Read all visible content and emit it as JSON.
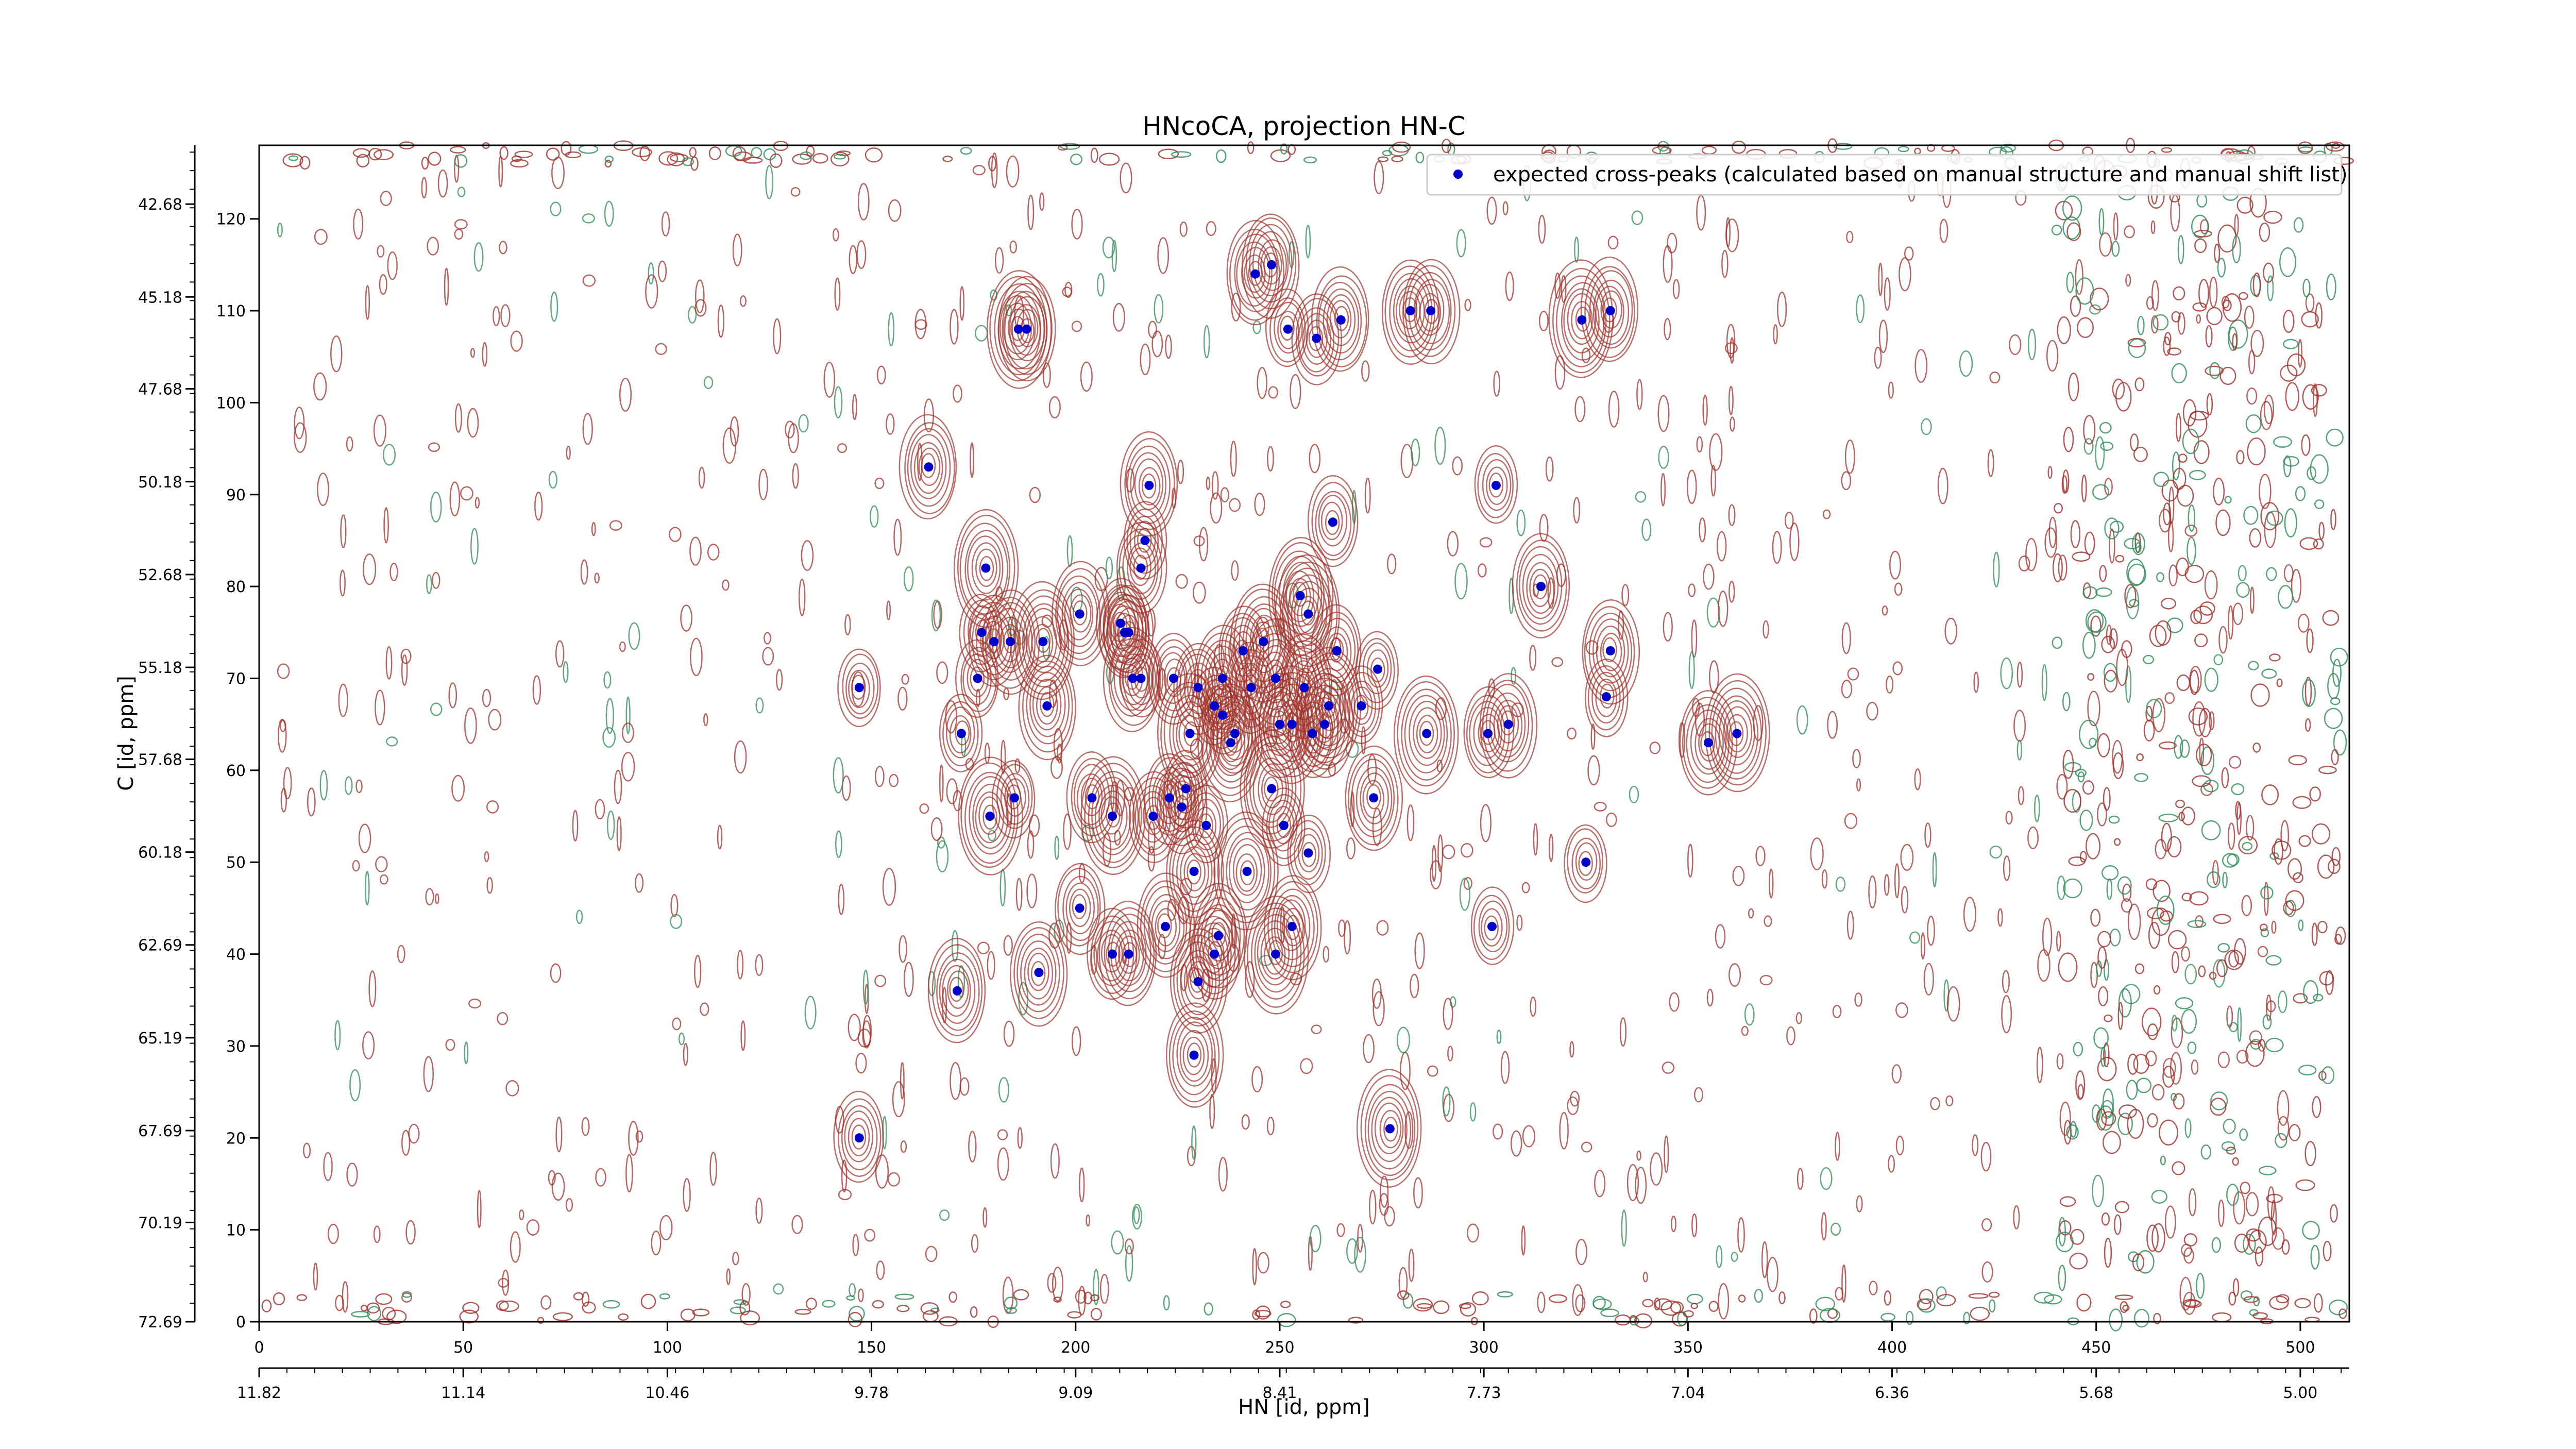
{
  "chart_data": {
    "type": "scatter",
    "title": "HNcoCA, projection HN-C",
    "xlabel": "HN [id, ppm]",
    "ylabel": "C [id, ppm]",
    "xlim": [
      0,
      512
    ],
    "ylim": [
      0,
      128
    ],
    "grid": false,
    "legend_position": "top-right",
    "colors": {
      "peaks": "#0000cc",
      "contour_positive": "#a0302a",
      "contour_negative": "#2e8b57"
    },
    "x_ticks": [
      "0",
      "50",
      "100",
      "150",
      "200",
      "250",
      "300",
      "350",
      "400",
      "450",
      "500"
    ],
    "x_tick_values": [
      0,
      50,
      100,
      150,
      200,
      250,
      300,
      350,
      400,
      450,
      500
    ],
    "y_ticks": [
      "0",
      "10",
      "20",
      "30",
      "40",
      "50",
      "60",
      "70",
      "80",
      "90",
      "100",
      "110",
      "120"
    ],
    "y_tick_values": [
      0,
      10,
      20,
      30,
      40,
      50,
      60,
      70,
      80,
      90,
      100,
      110,
      120
    ],
    "secondary_x_ticks": [
      "11.82",
      "11.14",
      "10.46",
      "9.78",
      "9.09",
      "8.41",
      "7.73",
      "7.04",
      "6.36",
      "5.68",
      "5.00"
    ],
    "secondary_x_tick_values": [
      0,
      50,
      100,
      150,
      200,
      250,
      300,
      350,
      400,
      450,
      500
    ],
    "secondary_y_ticks": [
      "42.68",
      "45.18",
      "47.68",
      "50.18",
      "52.68",
      "55.18",
      "57.68",
      "60.18",
      "62.69",
      "65.19",
      "67.69",
      "70.19",
      "72.69"
    ],
    "secondary_y_tick_values": [
      121.6,
      111.5,
      101.5,
      91.4,
      81.3,
      71.2,
      61.2,
      51.1,
      41.0,
      30.9,
      20.8,
      10.8,
      0
    ],
    "series": [
      {
        "name": "expected cross-peaks (calculated based on manual structure and manual shift list)",
        "x": [
          164,
          188,
          244,
          248,
          252,
          259,
          265,
          282,
          287,
          324,
          331,
          186,
          218,
          217,
          216,
          303,
          263,
          314,
          178,
          180,
          177,
          184,
          192,
          176,
          193,
          172,
          147,
          201,
          211,
          212,
          213,
          216,
          214,
          224,
          236,
          241,
          246,
          243,
          230,
          234,
          236,
          257,
          255,
          249,
          250,
          253,
          238,
          228,
          239,
          258,
          256,
          261,
          262,
          270,
          274,
          264,
          286,
          301,
          306,
          331,
          330,
          355,
          362,
          179,
          185,
          204,
          209,
          219,
          223,
          227,
          226,
          232,
          251,
          248,
          257,
          273,
          229,
          242,
          201,
          222,
          235,
          253,
          213,
          209,
          230,
          234,
          249,
          302,
          325,
          191,
          171,
          229,
          147,
          277
        ],
        "y": [
          93,
          108,
          114,
          115,
          108,
          107,
          109,
          110,
          110,
          109,
          110,
          108,
          91,
          85,
          82,
          91,
          87,
          80,
          82,
          74,
          75,
          74,
          74,
          70,
          67,
          64,
          69,
          77,
          76,
          75,
          75,
          70,
          70,
          70,
          70,
          73,
          74,
          69,
          69,
          67,
          66,
          77,
          79,
          70,
          65,
          65,
          63,
          64,
          64,
          64,
          69,
          65,
          67,
          67,
          71,
          73,
          64,
          64,
          65,
          73,
          68,
          63,
          64,
          55,
          57,
          57,
          55,
          55,
          57,
          58,
          56,
          54,
          54,
          58,
          51,
          57,
          49,
          49,
          45,
          43,
          42,
          43,
          40,
          40,
          37,
          40,
          40,
          43,
          50,
          38,
          36,
          29,
          20,
          21
        ]
      }
    ]
  }
}
